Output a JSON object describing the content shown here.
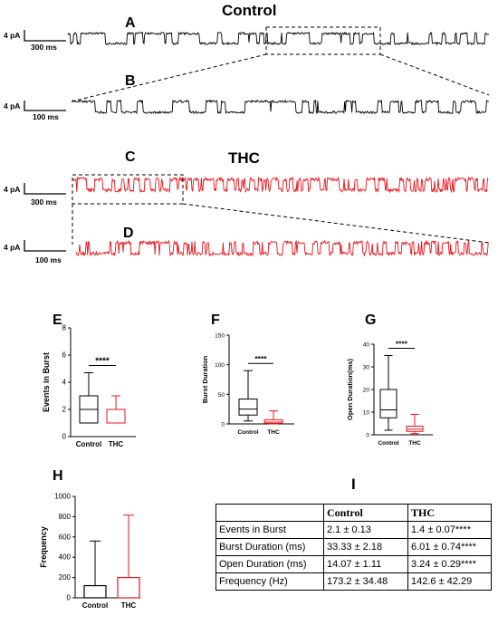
{
  "colors": {
    "control": "#000000",
    "thc": "#e8141b"
  },
  "traces": {
    "control_title": "Control",
    "thc_title": "THC",
    "panels": [
      {
        "letter": "A",
        "scale_current": "4 pA",
        "scale_time": "300 ms",
        "condition": "Control"
      },
      {
        "letter": "B",
        "scale_current": "4 pA",
        "scale_time": "100 ms",
        "condition": "Control"
      },
      {
        "letter": "C",
        "scale_current": "4 pA",
        "scale_time": "300 ms",
        "condition": "THC"
      },
      {
        "letter": "D",
        "scale_current": "4 pA",
        "scale_time": "100 ms",
        "condition": "THC"
      }
    ]
  },
  "chart_data": [
    {
      "panel": "E",
      "type": "box",
      "ylabel": "Events in Burst",
      "ylim": [
        0,
        8
      ],
      "yticks": [
        0,
        2,
        4,
        6,
        8
      ],
      "categories": [
        "Control",
        "THC"
      ],
      "series": [
        {
          "name": "Control",
          "min": 1,
          "q1": 1,
          "median": 2,
          "q3": 3,
          "max": 4.7
        },
        {
          "name": "THC",
          "min": 1,
          "q1": 1,
          "median": 2,
          "q3": 2,
          "max": 3
        }
      ],
      "significance": "****"
    },
    {
      "panel": "F",
      "type": "box",
      "ylabel": "Burst Duration",
      "ylim": [
        0,
        150
      ],
      "yticks": [
        0,
        50,
        100,
        150
      ],
      "categories": [
        "Control",
        "THC"
      ],
      "series": [
        {
          "name": "Control",
          "min": 5,
          "q1": 15,
          "median": 25,
          "q3": 42,
          "max": 90
        },
        {
          "name": "THC",
          "min": 0,
          "q1": 1,
          "median": 3,
          "q3": 7,
          "max": 22
        }
      ],
      "significance": "****"
    },
    {
      "panel": "G",
      "type": "box",
      "ylabel": "Open Duration(ms)",
      "ylim": [
        0,
        40
      ],
      "yticks": [
        0,
        10,
        20,
        30,
        40
      ],
      "categories": [
        "Control",
        "THC"
      ],
      "series": [
        {
          "name": "Control",
          "min": 2,
          "q1": 7.5,
          "median": 11,
          "q3": 20,
          "max": 35
        },
        {
          "name": "THC",
          "min": 0.5,
          "q1": 1.5,
          "median": 2.5,
          "q3": 3.8,
          "max": 9
        }
      ],
      "significance": "****"
    },
    {
      "panel": "H",
      "type": "bar",
      "ylabel": "Frequency",
      "ylim": [
        0,
        1000
      ],
      "yticks": [
        0,
        200,
        400,
        600,
        800,
        1000
      ],
      "categories": [
        "Control",
        "THC"
      ],
      "series": [
        {
          "name": "Control",
          "value": 120,
          "error_upper": 560
        },
        {
          "name": "THC",
          "value": 200,
          "error_upper": 815
        }
      ]
    }
  ],
  "table": {
    "panel": "I",
    "headers": [
      "",
      "Control",
      "THC"
    ],
    "rows": [
      [
        "Events in Burst",
        "2.1 ± 0.13",
        "1.4 ± 0.07****"
      ],
      [
        "Burst Duration (ms)",
        "33.33 ± 2.18",
        "6.01 ± 0.74****"
      ],
      [
        "Open Duration (ms)",
        "14.07 ± 1.11",
        "3.24 ± 0.29****"
      ],
      [
        "Frequency (Hz)",
        "173.2 ± 34.48",
        "142.6 ± 42.29"
      ]
    ]
  }
}
